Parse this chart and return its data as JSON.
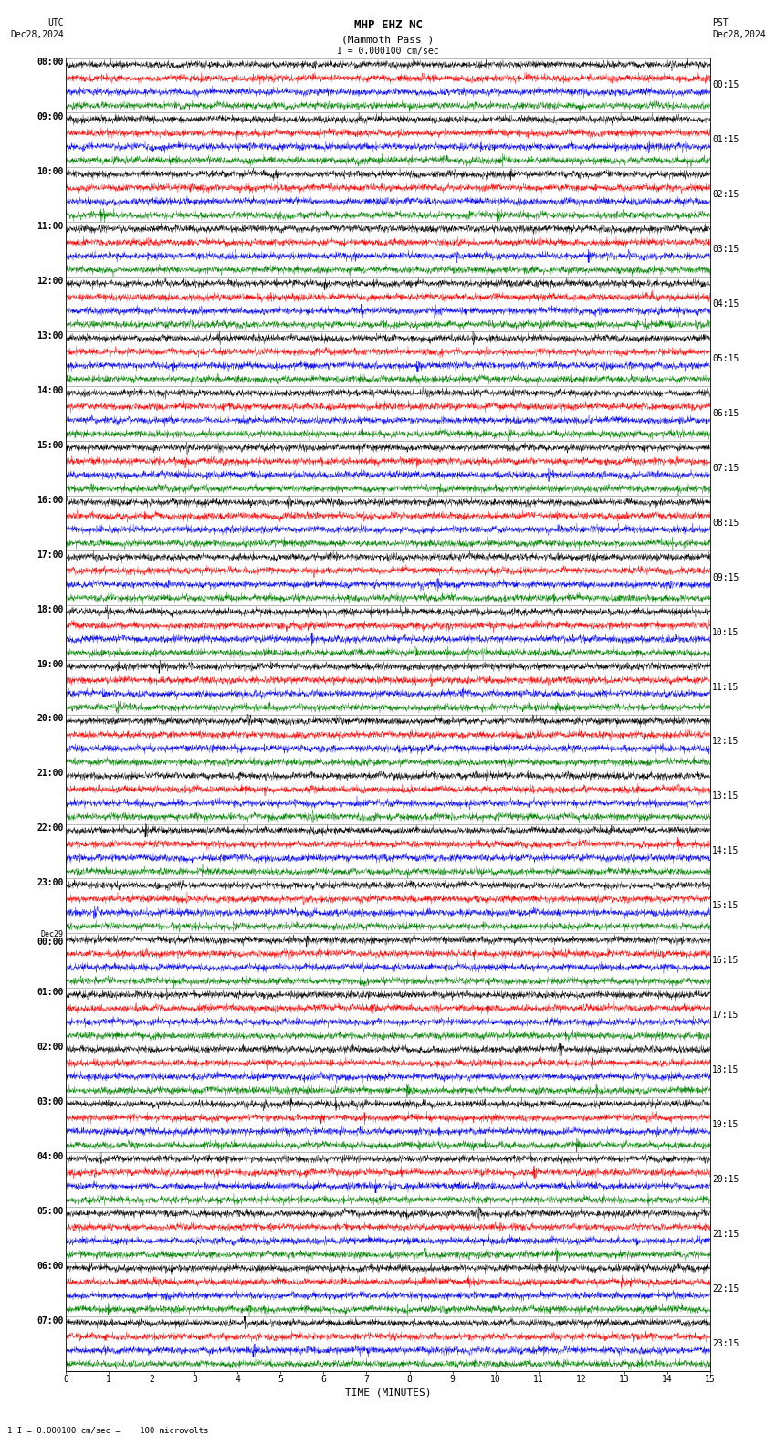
{
  "title_line1": "MHP EHZ NC",
  "title_line2": "(Mammoth Pass )",
  "scale_label": "I = 0.000100 cm/sec",
  "left_header": "UTC",
  "left_date": "Dec28,2024",
  "right_header": "PST",
  "right_date": "Dec28,2024",
  "bottom_label": "TIME (MINUTES)",
  "bottom_note": "1 I = 0.000100 cm/sec =    100 microvolts",
  "xlabel_ticks": [
    0,
    1,
    2,
    3,
    4,
    5,
    6,
    7,
    8,
    9,
    10,
    11,
    12,
    13,
    14,
    15
  ],
  "left_times": [
    "08:00",
    "09:00",
    "10:00",
    "11:00",
    "12:00",
    "13:00",
    "14:00",
    "15:00",
    "16:00",
    "17:00",
    "18:00",
    "19:00",
    "20:00",
    "21:00",
    "22:00",
    "23:00",
    "Dec29\n00:00",
    "01:00",
    "02:00",
    "03:00",
    "04:00",
    "05:00",
    "06:00",
    "07:00"
  ],
  "right_times": [
    "00:15",
    "01:15",
    "02:15",
    "03:15",
    "04:15",
    "05:15",
    "06:15",
    "07:15",
    "08:15",
    "09:15",
    "10:15",
    "11:15",
    "12:15",
    "13:15",
    "14:15",
    "15:15",
    "16:15",
    "17:15",
    "18:15",
    "19:15",
    "20:15",
    "21:15",
    "22:15",
    "23:15"
  ],
  "n_rows": 24,
  "traces_per_row": 4,
  "colors": [
    "black",
    "red",
    "blue",
    "green"
  ],
  "bg_color": "white",
  "fig_width": 8.5,
  "fig_height": 15.84,
  "dpi": 100,
  "xmin": 0,
  "xmax": 15,
  "title_fontsize": 9,
  "label_fontsize": 7,
  "tick_fontsize": 7,
  "time_fontsize": 7
}
